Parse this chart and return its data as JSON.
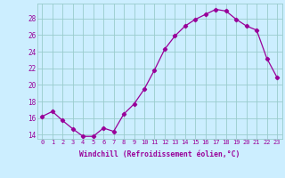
{
  "x": [
    0,
    1,
    2,
    3,
    4,
    5,
    6,
    7,
    8,
    9,
    10,
    11,
    12,
    13,
    14,
    15,
    16,
    17,
    18,
    19,
    20,
    21,
    22,
    23
  ],
  "y": [
    16.2,
    16.8,
    15.7,
    14.7,
    13.8,
    13.8,
    14.8,
    14.4,
    16.5,
    17.7,
    19.5,
    21.8,
    24.3,
    25.9,
    27.1,
    27.9,
    28.5,
    29.1,
    28.9,
    27.9,
    27.1,
    26.6,
    23.2,
    20.9
  ],
  "line_color": "#990099",
  "marker": "D",
  "marker_size": 2.2,
  "bg_color": "#cceeff",
  "grid_color": "#99cccc",
  "xlabel": "Windchill (Refroidissement éolien,°C)",
  "xlabel_color": "#990099",
  "tick_color": "#990099",
  "ylim": [
    13.5,
    29.8
  ],
  "yticks": [
    14,
    16,
    18,
    20,
    22,
    24,
    26,
    28
  ],
  "xlim": [
    -0.5,
    23.5
  ],
  "xticks": [
    0,
    1,
    2,
    3,
    4,
    5,
    6,
    7,
    8,
    9,
    10,
    11,
    12,
    13,
    14,
    15,
    16,
    17,
    18,
    19,
    20,
    21,
    22,
    23
  ],
  "xtick_labels": [
    "0",
    "1",
    "2",
    "3",
    "4",
    "5",
    "6",
    "7",
    "8",
    "9",
    "10",
    "11",
    "12",
    "13",
    "14",
    "15",
    "16",
    "17",
    "18",
    "19",
    "20",
    "21",
    "22",
    "23"
  ]
}
